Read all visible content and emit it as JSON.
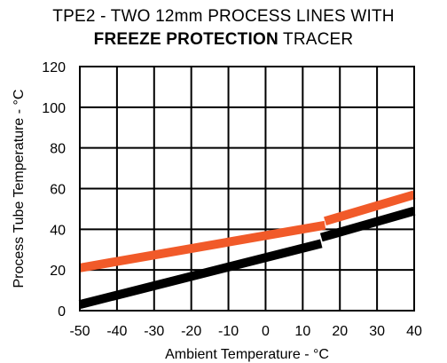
{
  "chart_data": {
    "type": "line",
    "title_line1": "TPE2 - TWO 12mm PROCESS  LINES WITH",
    "title_line2_bold": "FREEZE PROTECTION",
    "title_line2_rest": " TRACER",
    "xlabel": "Ambient Temperature - °C",
    "ylabel": "Process Tube Temperature - °C",
    "xlim": [
      -50,
      40
    ],
    "ylim": [
      0,
      120
    ],
    "xticks": [
      -50,
      -40,
      -30,
      -20,
      -10,
      0,
      10,
      20,
      30,
      40
    ],
    "yticks": [
      0,
      20,
      40,
      60,
      80,
      100,
      120
    ],
    "xtick_labels": [
      "-50",
      "-40",
      "-30",
      "-20",
      "-10",
      "0",
      "10",
      "20",
      "30",
      "40"
    ],
    "ytick_labels": [
      "0",
      "20",
      "40",
      "60",
      "80",
      "100",
      "120"
    ],
    "grid": true,
    "series": [
      {
        "color": "#f15a29",
        "segments": [
          {
            "x": [
              -50,
              16
            ],
            "y": [
              21,
              42
            ]
          },
          {
            "x": [
              16,
              40
            ],
            "y": [
              44,
              57
            ]
          }
        ]
      },
      {
        "color": "#000000",
        "segments": [
          {
            "x": [
              -50,
              15
            ],
            "y": [
              3,
              33
            ]
          },
          {
            "x": [
              15,
              40
            ],
            "y": [
              36,
              49
            ]
          }
        ]
      }
    ]
  }
}
